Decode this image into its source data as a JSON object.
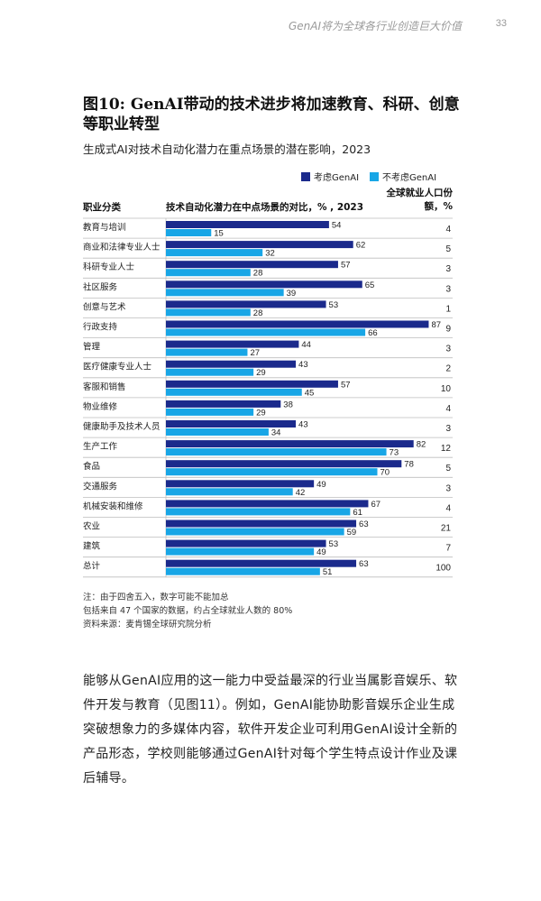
{
  "header": {
    "doc_title": "GenAI将为全球各行业创造巨大价值",
    "page_number": "33"
  },
  "figure": {
    "title": "图10: GenAI带动的技术进步将加速教育、科研、创意等职业转型",
    "subtitle": "生成式AI对技术自动化潜力在重点场景的潜在影响，2023",
    "column_category": "职业分类",
    "column_chart": "技术自动化潜力在中点场景的对比，% , 2023",
    "column_share": "全球就业人口份额，%",
    "legend": [
      {
        "label": "考虑GenAI",
        "color": "#1b2a8c"
      },
      {
        "label": "不考虑GenAI",
        "color": "#18a6e6"
      }
    ]
  },
  "chart_data": {
    "type": "bar",
    "orientation": "horizontal",
    "categories": [
      "教育与培训",
      "商业和法律专业人士",
      "科研专业人士",
      "社区服务",
      "创意与艺术",
      "行政支持",
      "管理",
      "医疗健康专业人士",
      "客服和销售",
      "物业维修",
      "健康助手及技术人员",
      "生产工作",
      "食品",
      "交通服务",
      "机械安装和维修",
      "农业",
      "建筑",
      "总计"
    ],
    "series": [
      {
        "name": "考虑GenAI",
        "color": "#1b2a8c",
        "values": [
          54,
          62,
          57,
          65,
          53,
          87,
          44,
          43,
          57,
          38,
          43,
          82,
          78,
          49,
          67,
          63,
          53,
          63
        ]
      },
      {
        "name": "不考虑GenAI",
        "color": "#18a6e6",
        "values": [
          15,
          32,
          28,
          39,
          28,
          66,
          27,
          29,
          45,
          29,
          34,
          73,
          70,
          42,
          61,
          59,
          49,
          51
        ]
      }
    ],
    "employment_share": [
      4,
      5,
      3,
      3,
      1,
      9,
      3,
      2,
      10,
      4,
      3,
      12,
      5,
      3,
      4,
      21,
      7,
      100
    ],
    "xlim": [
      0,
      100
    ],
    "data_labels": true
  },
  "notes": {
    "line1": "注：由于四舍五入，数字可能不能加总",
    "line2": "包括来自 47 个国家的数据，约占全球就业人数的 80%",
    "source": "资料来源：麦肯锡全球研究院分析"
  },
  "body_text": "能够从GenAI应用的这一能力中受益最深的行业当属影音娱乐、软件开发与教育（见图11）。例如，GenAI能协助影音娱乐企业生成突破想象力的多媒体内容，软件开发企业可利用GenAI设计全新的产品形态，学校则能够通过GenAI针对每个学生特点设计作业及课后辅导。"
}
